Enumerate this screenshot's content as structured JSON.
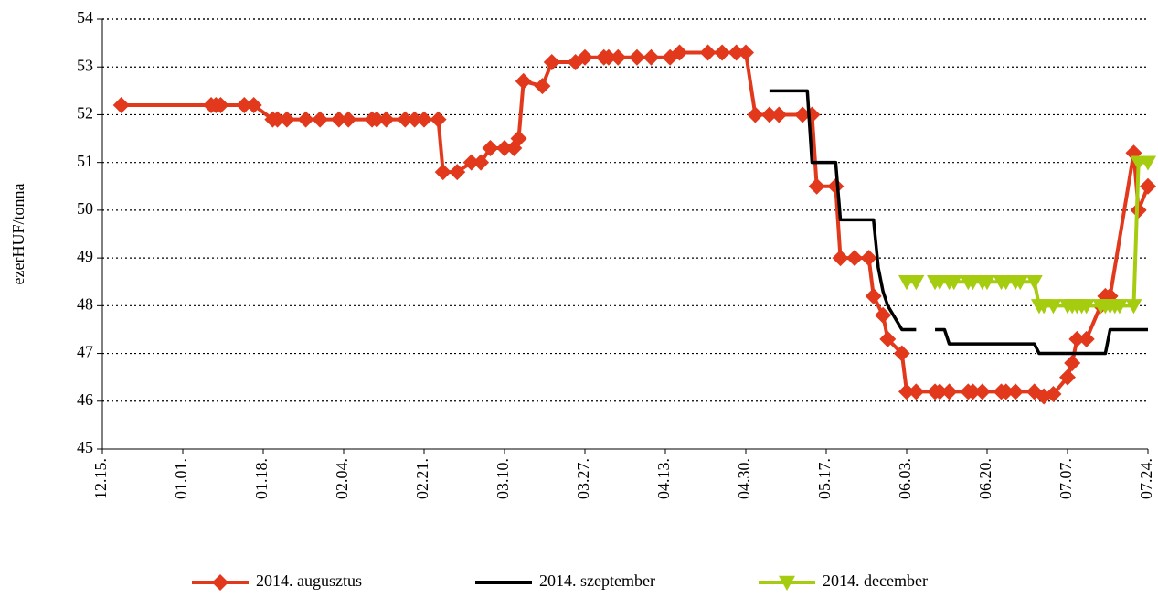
{
  "chart_data": {
    "type": "line",
    "ylabel": "ezerHUF/tonna",
    "xlim": [
      "12.15.",
      "07.24."
    ],
    "xticks": [
      "12.15.",
      "01.01.",
      "01.18.",
      "02.04.",
      "02.21.",
      "03.10.",
      "03.27.",
      "04.13.",
      "04.30.",
      "05.17.",
      "06.03.",
      "06.20.",
      "07.07.",
      "07.24."
    ],
    "ylim": [
      45,
      54
    ],
    "yticks": [
      45,
      46,
      47,
      48,
      49,
      50,
      51,
      52,
      53,
      54
    ],
    "grid": true,
    "legend": "bottom",
    "series": [
      {
        "name": "2014. augusztus",
        "color": "#e2381c",
        "marker": "diamond",
        "x": [
          "12.19.",
          "01.07.",
          "01.08.",
          "01.09.",
          "01.14.",
          "01.16.",
          "01.20.",
          "01.21.",
          "01.23.",
          "01.27.",
          "01.30.",
          "02.03.",
          "02.05.",
          "02.10.",
          "02.11.",
          "02.13.",
          "02.17.",
          "02.19.",
          "02.21.",
          "02.24.",
          "02.25.",
          "02.28.",
          "03.03.",
          "03.05.",
          "03.07.",
          "03.10.",
          "03.12.",
          "03.13.",
          "03.14.",
          "03.18.",
          "03.20.",
          "03.25.",
          "03.27.",
          "03.31.",
          "04.01.",
          "04.03.",
          "04.07.",
          "04.10.",
          "04.14.",
          "04.16.",
          "04.22.",
          "04.25.",
          "04.28.",
          "04.30.",
          "05.02.",
          "05.05.",
          "05.07.",
          "05.12.",
          "05.14.",
          "05.15.",
          "05.19.",
          "05.20.",
          "05.23.",
          "05.26.",
          "05.27.",
          "05.29.",
          "05.30.",
          "06.02.",
          "06.03.",
          "06.05.",
          "06.09.",
          "06.10.",
          "06.12.",
          "06.16.",
          "06.17.",
          "06.19.",
          "06.23.",
          "06.24.",
          "06.26.",
          "06.30.",
          "07.02.",
          "07.04.",
          "07.07.",
          "07.08.",
          "07.09.",
          "07.11.",
          "07.14.",
          "07.15.",
          "07.16.",
          "07.21.",
          "07.22.",
          "07.24."
        ],
        "values": [
          52.2,
          52.2,
          52.2,
          52.2,
          52.2,
          52.2,
          51.9,
          51.9,
          51.9,
          51.9,
          51.9,
          51.9,
          51.9,
          51.9,
          51.9,
          51.9,
          51.9,
          51.9,
          51.9,
          51.9,
          50.8,
          50.8,
          51.0,
          51.0,
          51.3,
          51.3,
          51.3,
          51.5,
          52.7,
          52.6,
          53.1,
          53.1,
          53.2,
          53.2,
          53.2,
          53.2,
          53.2,
          53.2,
          53.2,
          53.3,
          53.3,
          53.3,
          53.3,
          53.3,
          52.0,
          52.0,
          52.0,
          52.0,
          52.0,
          50.5,
          50.5,
          49.0,
          49.0,
          49.0,
          48.2,
          47.8,
          47.3,
          47.0,
          46.2,
          46.2,
          46.2,
          46.2,
          46.2,
          46.2,
          46.2,
          46.2,
          46.2,
          46.2,
          46.2,
          46.2,
          46.1,
          46.15,
          46.5,
          46.8,
          47.3,
          47.3,
          48.0,
          48.2,
          48.2,
          51.2,
          50.0,
          50.5
        ]
      },
      {
        "name": "2014. szeptember",
        "color": "#000000",
        "marker": "none",
        "x": [
          "05.05.",
          "05.13.",
          "05.14.",
          "05.19.",
          "05.20.",
          "05.27.",
          "05.28.",
          "05.29.",
          "05.30.",
          "06.02.",
          "06.05.",
          "06.07.",
          "06.09.",
          "06.11.",
          "06.12.",
          "06.30.",
          "07.01.",
          "07.15.",
          "07.16.",
          "07.24."
        ],
        "values": [
          52.5,
          52.5,
          51.0,
          51.0,
          49.8,
          49.8,
          48.8,
          48.3,
          48.0,
          47.5,
          47.5,
          null,
          47.5,
          47.5,
          47.2,
          47.2,
          47.0,
          47.0,
          47.5,
          47.5
        ]
      },
      {
        "name": "2014. december",
        "color": "#a5cc0e",
        "marker": "triangle-down",
        "x": [
          "06.03.",
          "06.05.",
          "06.07.",
          "06.09.",
          "06.10.",
          "06.12.",
          "06.13.",
          "06.16.",
          "06.17.",
          "06.19.",
          "06.20.",
          "06.23.",
          "06.24.",
          "06.26.",
          "06.27.",
          "06.30.",
          "07.01.",
          "07.02.",
          "07.04.",
          "07.07.",
          "07.08.",
          "07.09.",
          "07.10.",
          "07.11.",
          "07.14.",
          "07.15.",
          "07.16.",
          "07.17.",
          "07.18.",
          "07.21.",
          "07.22.",
          "07.24."
        ],
        "values": [
          48.5,
          48.5,
          null,
          48.5,
          48.5,
          48.5,
          48.5,
          48.5,
          48.5,
          48.5,
          48.5,
          48.5,
          48.5,
          48.5,
          48.5,
          48.5,
          48.0,
          48.0,
          48.0,
          48.0,
          48.0,
          48.0,
          48.0,
          48.0,
          48.0,
          48.0,
          48.0,
          48.0,
          48.0,
          48.0,
          51.0,
          51.0
        ]
      }
    ]
  }
}
